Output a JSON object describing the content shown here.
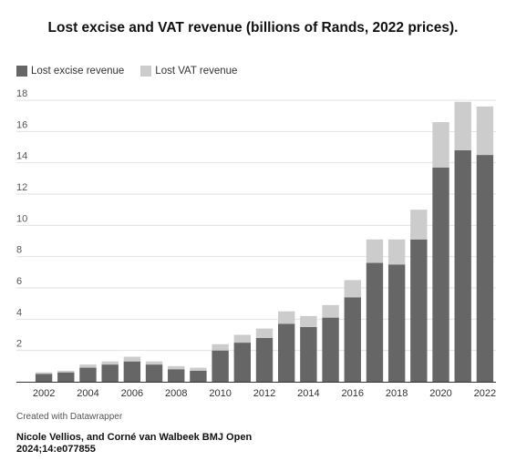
{
  "chart_data": {
    "type": "bar",
    "stacked": true,
    "title": "Lost excise and VAT revenue (billions of Rands, 2022 prices).",
    "xlabel": "",
    "ylabel": "",
    "ylim": [
      0,
      18
    ],
    "yticks": [
      2,
      4,
      6,
      8,
      10,
      12,
      14,
      16,
      18
    ],
    "grid": true,
    "legend_position": "top-left",
    "categories": [
      "2002",
      "2003",
      "2004",
      "2005",
      "2006",
      "2007",
      "2008",
      "2009",
      "2010",
      "2011",
      "2012",
      "2013",
      "2014",
      "2015",
      "2016",
      "2017",
      "2018",
      "2019",
      "2020",
      "2021",
      "2022"
    ],
    "xtick_labels": [
      "2002",
      "2004",
      "2006",
      "2008",
      "2010",
      "2012",
      "2014",
      "2016",
      "2018",
      "2020",
      "2022"
    ],
    "series": [
      {
        "name": "Lost excise revenue",
        "color": "#666666",
        "values": [
          0.5,
          0.6,
          0.9,
          1.1,
          1.3,
          1.1,
          0.8,
          0.7,
          2.0,
          2.5,
          2.8,
          3.7,
          3.5,
          4.1,
          5.4,
          7.6,
          7.5,
          9.1,
          13.7,
          14.8,
          14.5
        ]
      },
      {
        "name": "Lost VAT revenue",
        "color": "#cccccc",
        "values": [
          0.1,
          0.1,
          0.2,
          0.2,
          0.3,
          0.2,
          0.2,
          0.2,
          0.4,
          0.5,
          0.6,
          0.8,
          0.7,
          0.8,
          1.1,
          1.5,
          1.6,
          1.9,
          2.9,
          3.1,
          3.1
        ]
      }
    ]
  },
  "footer": {
    "credit": "Created with Datawrapper",
    "source": "Nicole Vellios, and Corné van Walbeek BMJ Open 2024;14:e077855"
  }
}
